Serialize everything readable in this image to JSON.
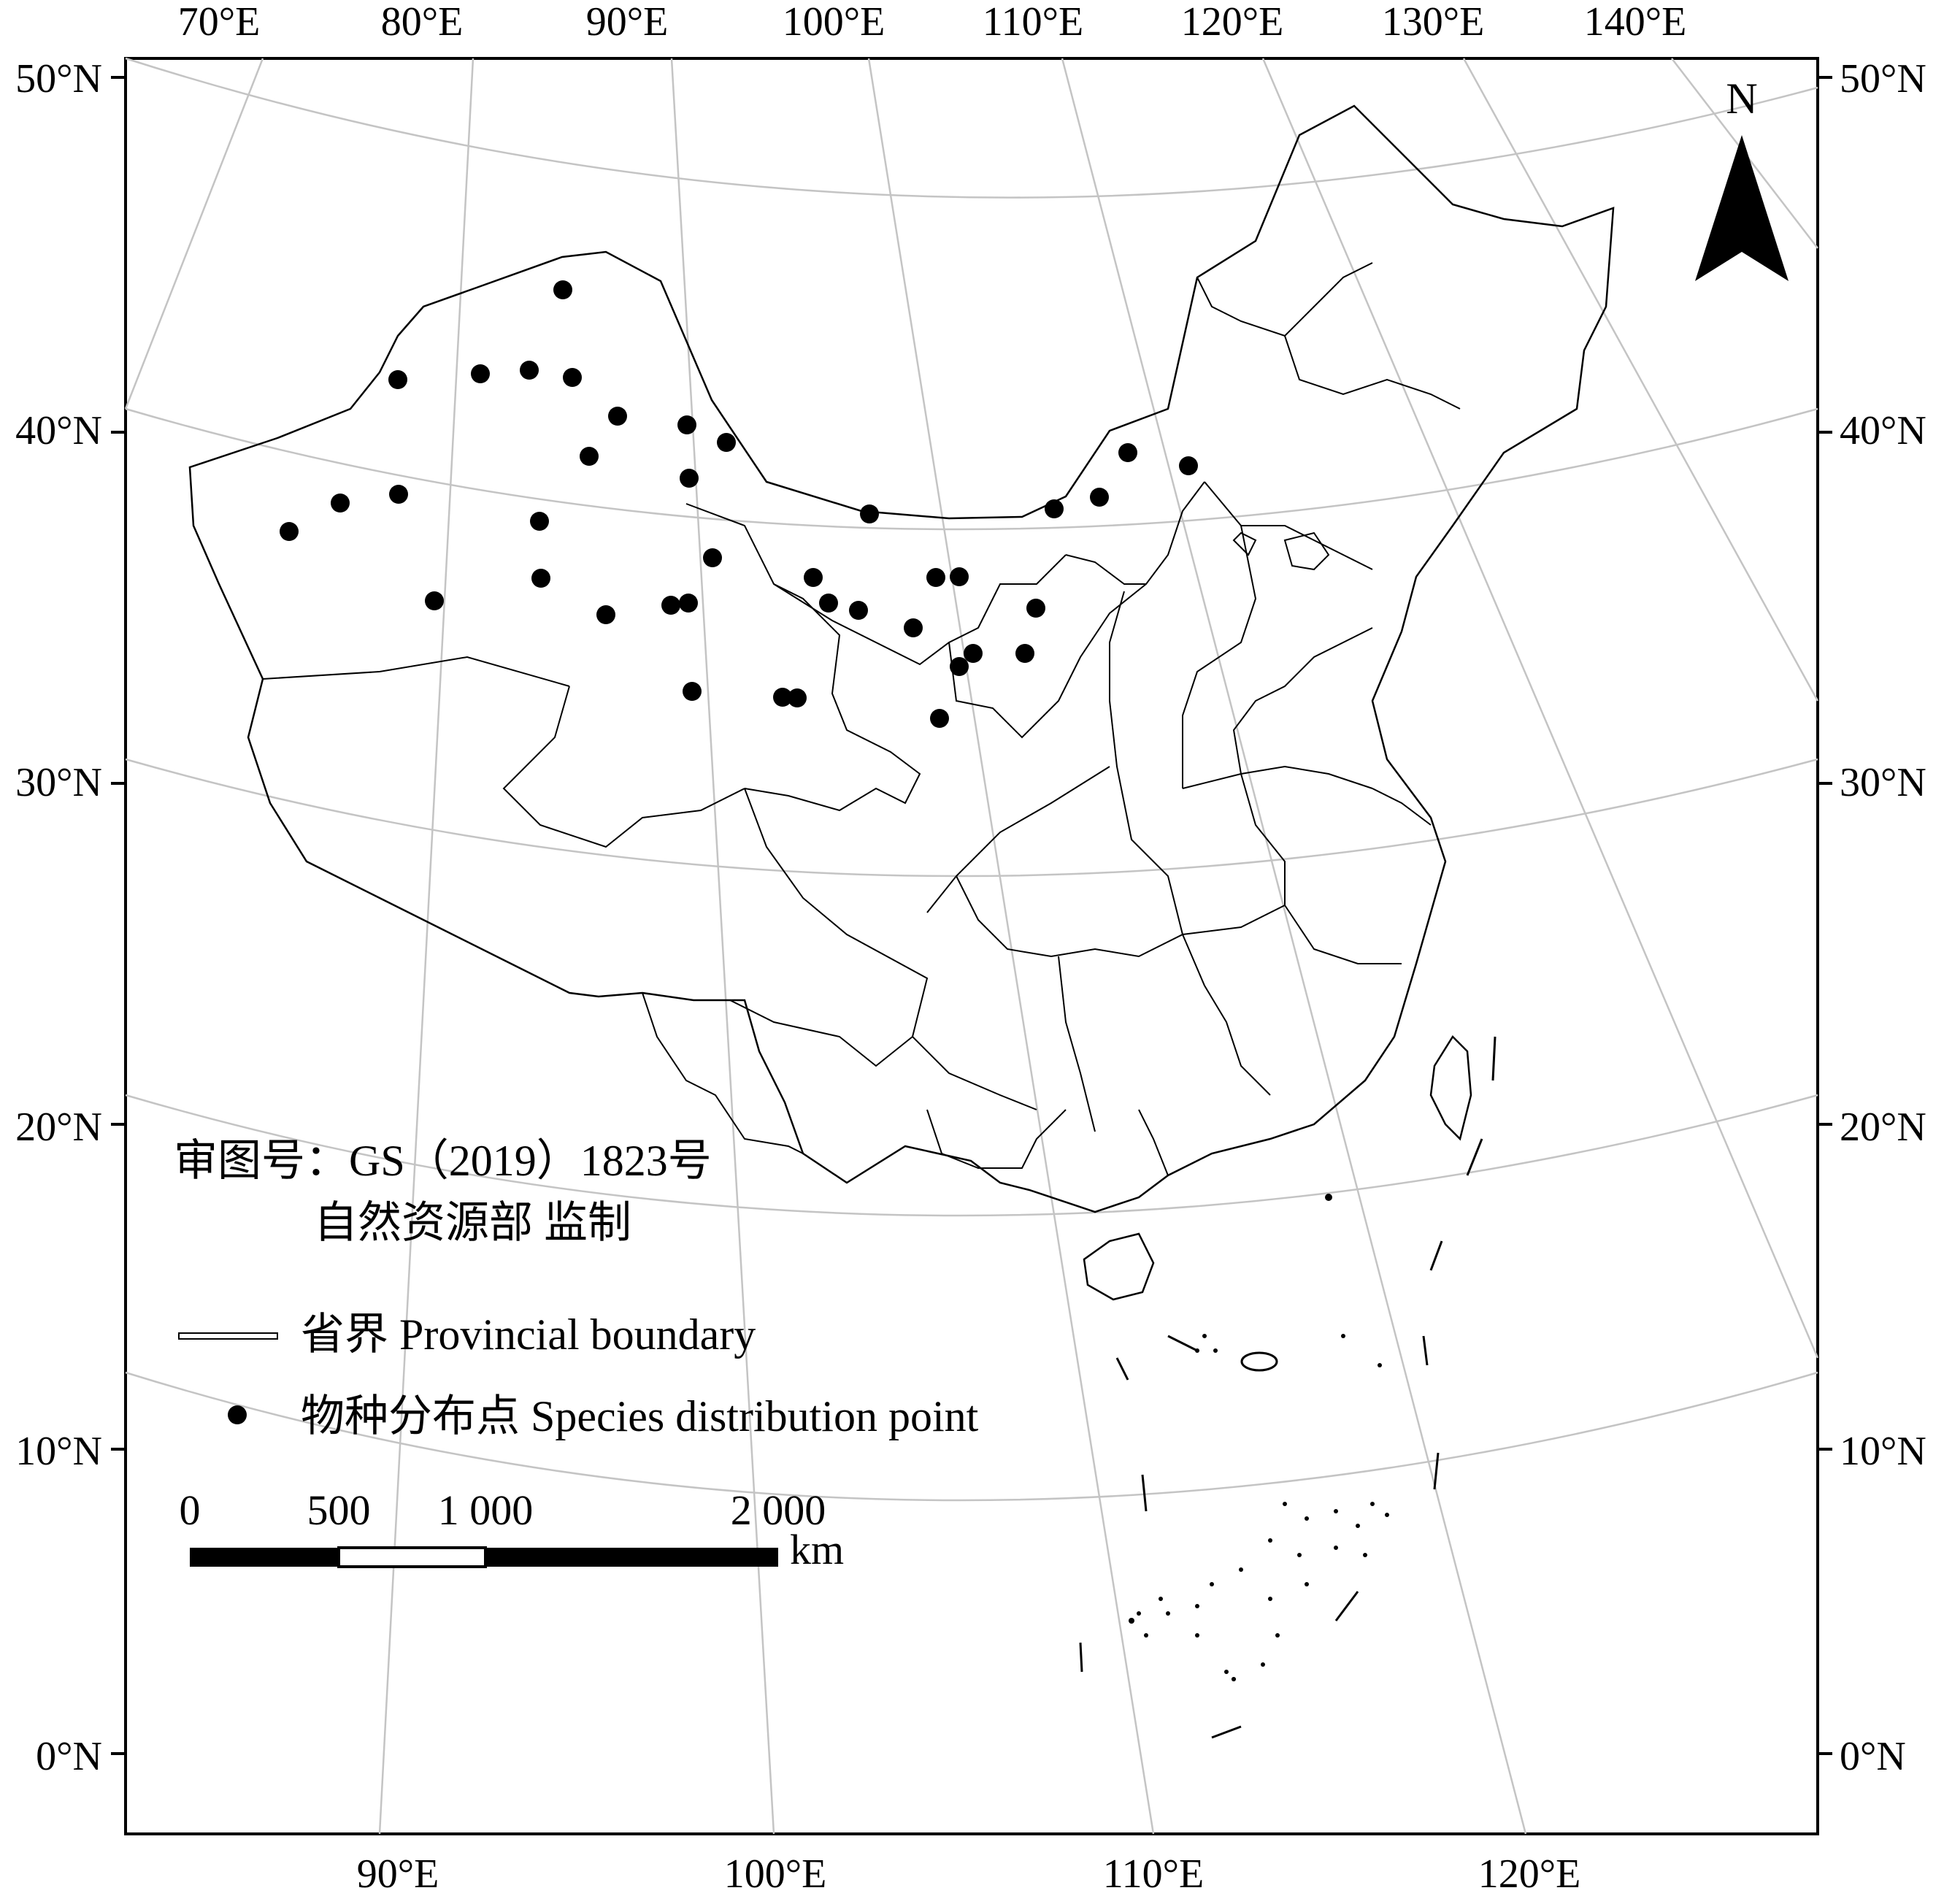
{
  "map": {
    "top_lon_labels": [
      "70°E",
      "80°E",
      "90°E",
      "100°E",
      "110°E",
      "120°E",
      "130°E",
      "140°E"
    ],
    "bottom_lon_labels": [
      "90°E",
      "100°E",
      "110°E",
      "120°E"
    ],
    "lat_labels": [
      "50°N",
      "40°N",
      "30°N",
      "20°N",
      "10°N",
      "0°N"
    ],
    "north_label": "N",
    "approval_line1": "审图号：GS（2019）1823号",
    "approval_line2": "自然资源部 监制",
    "legend": {
      "boundary_label": "省界 Provincial boundary",
      "point_label": "物种分布点 Species distribution point"
    },
    "scale_bar": {
      "ticks": [
        "0",
        "500",
        "1 000",
        "2 000"
      ],
      "unit": "km"
    },
    "colors": {
      "ink": "#000000",
      "graticule": "#bbbbbb",
      "background": "#ffffff"
    }
  }
}
